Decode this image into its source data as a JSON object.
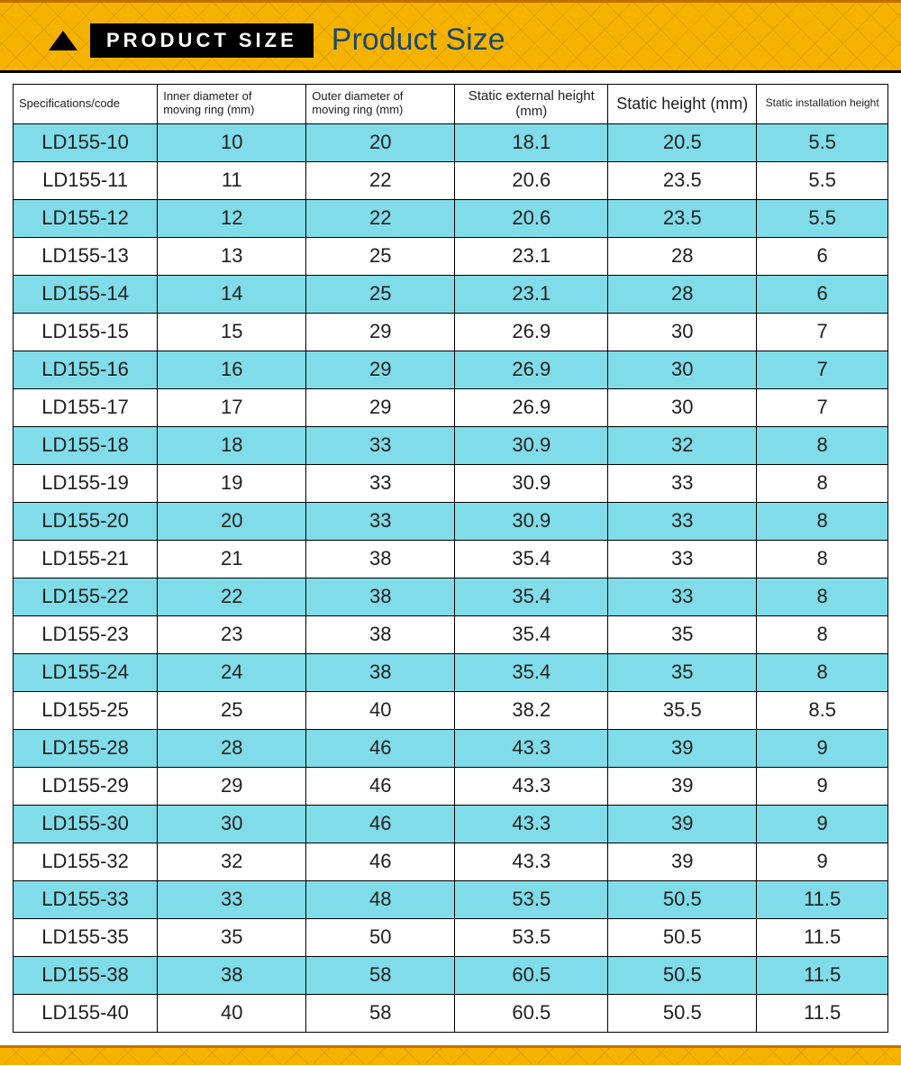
{
  "header": {
    "tag_text": "PRODUCT SIZE",
    "title": "Product Size",
    "tag_bg": "#000000",
    "tag_color": "#ffffff",
    "title_color": "#1a4a6e",
    "pattern_bg": "#f5b300"
  },
  "table": {
    "alt_row_bg": "#80dce8",
    "row_bg": "#ffffff",
    "border_color": "#000000",
    "columns": [
      {
        "label": "Specifications/code",
        "head_class": ""
      },
      {
        "label": "Inner diameter of\nmoving ring (mm)",
        "head_class": ""
      },
      {
        "label": "Outer diameter of\nmoving ring (mm)",
        "head_class": ""
      },
      {
        "label": "Static external height (mm)",
        "head_class": "med-head"
      },
      {
        "label": "Static height (mm)",
        "head_class": "big-head"
      },
      {
        "label": "Static installation height",
        "head_class": "sm-head"
      }
    ],
    "rows": [
      [
        "LD155-10",
        "10",
        "20",
        "18.1",
        "20.5",
        "5.5"
      ],
      [
        "LD155-11",
        "11",
        "22",
        "20.6",
        "23.5",
        "5.5"
      ],
      [
        "LD155-12",
        "12",
        "22",
        "20.6",
        "23.5",
        "5.5"
      ],
      [
        "LD155-13",
        "13",
        "25",
        "23.1",
        "28",
        "6"
      ],
      [
        "LD155-14",
        "14",
        "25",
        "23.1",
        "28",
        "6"
      ],
      [
        "LD155-15",
        "15",
        "29",
        "26.9",
        "30",
        "7"
      ],
      [
        "LD155-16",
        "16",
        "29",
        "26.9",
        "30",
        "7"
      ],
      [
        "LD155-17",
        "17",
        "29",
        "26.9",
        "30",
        "7"
      ],
      [
        "LD155-18",
        "18",
        "33",
        "30.9",
        "32",
        "8"
      ],
      [
        "LD155-19",
        "19",
        "33",
        "30.9",
        "33",
        "8"
      ],
      [
        "LD155-20",
        "20",
        "33",
        "30.9",
        "33",
        "8"
      ],
      [
        "LD155-21",
        "21",
        "38",
        "35.4",
        "33",
        "8"
      ],
      [
        "LD155-22",
        "22",
        "38",
        "35.4",
        "33",
        "8"
      ],
      [
        "LD155-23",
        "23",
        "38",
        "35.4",
        "35",
        "8"
      ],
      [
        "LD155-24",
        "24",
        "38",
        "35.4",
        "35",
        "8"
      ],
      [
        "LD155-25",
        "25",
        "40",
        "38.2",
        "35.5",
        "8.5"
      ],
      [
        "LD155-28",
        "28",
        "46",
        "43.3",
        "39",
        "9"
      ],
      [
        "LD155-29",
        "29",
        "46",
        "43.3",
        "39",
        "9"
      ],
      [
        "LD155-30",
        "30",
        "46",
        "43.3",
        "39",
        "9"
      ],
      [
        "LD155-32",
        "32",
        "46",
        "43.3",
        "39",
        "9"
      ],
      [
        "LD155-33",
        "33",
        "48",
        "53.5",
        "50.5",
        "11.5"
      ],
      [
        "LD155-35",
        "35",
        "50",
        "53.5",
        "50.5",
        "11.5"
      ],
      [
        "LD155-38",
        "38",
        "58",
        "60.5",
        "50.5",
        "11.5"
      ],
      [
        "LD155-40",
        "40",
        "58",
        "60.5",
        "50.5",
        "11.5"
      ]
    ]
  }
}
